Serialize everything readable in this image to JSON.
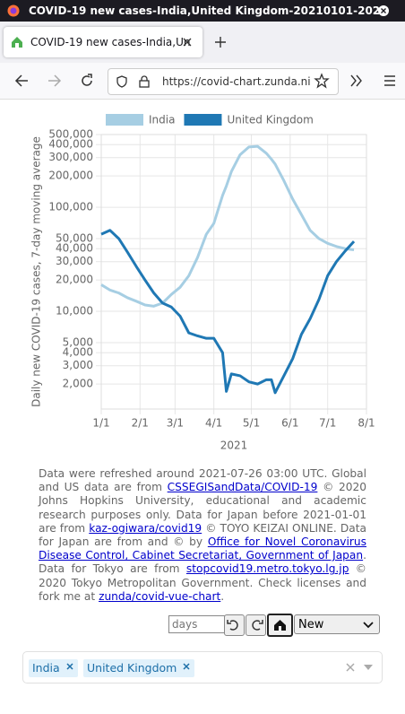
{
  "browser": {
    "window_title": "COVID-19 new cases-India,United Kingdom-20210101-202",
    "tab_title": "COVID-19 new cases-India,Un",
    "url": "https://covid-chart.zunda.ni"
  },
  "chart_data": {
    "type": "line",
    "y_label": "Daily new COVID-19 cases, 7-day moving average",
    "x_label": "2021",
    "legend": "top",
    "grid": true,
    "log_y": true,
    "x": [
      "2021-01-01",
      "2021-01-08",
      "2021-01-15",
      "2021-01-22",
      "2021-01-29",
      "2021-02-05",
      "2021-02-12",
      "2021-02-19",
      "2021-02-26",
      "2021-03-05",
      "2021-03-12",
      "2021-03-19",
      "2021-03-26",
      "2021-04-01",
      "2021-04-08",
      "2021-04-11",
      "2021-04-15",
      "2021-04-22",
      "2021-04-29",
      "2021-05-06",
      "2021-05-13",
      "2021-05-17",
      "2021-05-20",
      "2021-05-27",
      "2021-06-03",
      "2021-06-10",
      "2021-06-17",
      "2021-06-24",
      "2021-07-01",
      "2021-07-08",
      "2021-07-15",
      "2021-07-22"
    ],
    "series": [
      {
        "name": "India",
        "color": "#a6cee3",
        "values": [
          18000,
          16000,
          15000,
          13500,
          12500,
          11500,
          11200,
          12000,
          14500,
          17000,
          22000,
          33000,
          55000,
          70000,
          130000,
          160000,
          220000,
          320000,
          380000,
          385000,
          330000,
          290000,
          260000,
          180000,
          120000,
          85000,
          60000,
          50000,
          45000,
          42000,
          40000,
          39000
        ]
      },
      {
        "name": "United Kingdom",
        "color": "#1f78b4",
        "values": [
          55000,
          60000,
          50000,
          37000,
          27000,
          20000,
          15000,
          12000,
          11000,
          9000,
          6200,
          5800,
          5500,
          5500,
          4000,
          1700,
          2500,
          2400,
          2100,
          2000,
          2200,
          2200,
          1650,
          2400,
          3500,
          6000,
          8500,
          13000,
          22000,
          30000,
          38000,
          47000
        ]
      }
    ],
    "xlim": [
      "2021-01-01",
      "2021-08-01"
    ],
    "xticks": [
      {
        "value": "2021-01-01",
        "label": "1/1"
      },
      {
        "value": "2021-02-01",
        "label": "2/1"
      },
      {
        "value": "2021-03-01",
        "label": "3/1"
      },
      {
        "value": "2021-04-01",
        "label": "4/1"
      },
      {
        "value": "2021-05-01",
        "label": "5/1"
      },
      {
        "value": "2021-06-01",
        "label": "6/1"
      },
      {
        "value": "2021-07-01",
        "label": "7/1"
      },
      {
        "value": "2021-08-01",
        "label": "8/1"
      }
    ],
    "ylim": [
      1150,
      500000
    ],
    "yticks": [
      {
        "value": 2000,
        "label": "2,000"
      },
      {
        "value": 3000,
        "label": "3,000"
      },
      {
        "value": 4000,
        "label": "4,000"
      },
      {
        "value": 5000,
        "label": "5,000"
      },
      {
        "value": 10000,
        "label": "10,000"
      },
      {
        "value": 20000,
        "label": "20,000"
      },
      {
        "value": 30000,
        "label": "30,000"
      },
      {
        "value": 40000,
        "label": "40,000"
      },
      {
        "value": 50000,
        "label": "50,000"
      },
      {
        "value": 100000,
        "label": "100,000"
      },
      {
        "value": 200000,
        "label": "200,000"
      },
      {
        "value": 300000,
        "label": "300,000"
      },
      {
        "value": 400000,
        "label": "400,000"
      },
      {
        "value": 500000,
        "label": "500,000"
      }
    ]
  },
  "notes": [
    {
      "text": "Data were refreshed around 2021-07-26 03:00 UTC. Global and US data are from "
    },
    {
      "link": "CSSEGISandData/COVID-19"
    },
    {
      "text": " © 2020 Johns Hopkins University, educational and academic research purposes only. Data for Japan before 2021-01-01 are from "
    },
    {
      "link": "kaz-ogiwara/covid19"
    },
    {
      "text": " © TOYO KEIZAI ONLINE. Data for Japan are from and © by "
    },
    {
      "link": "Office for Novel Coronavirus Disease Control, Cabinet Secretariat, Government of Japan"
    },
    {
      "text": ". Data for Tokyo are from "
    },
    {
      "link": "stopcovid19.metro.tokyo.lg.jp"
    },
    {
      "text": " © 2020 Tokyo Metropolitan Government. Check licenses and fork me at "
    },
    {
      "link": "zunda/covid-vue-chart"
    },
    {
      "text": "."
    }
  ],
  "controls": {
    "days_placeholder": "days",
    "select": "New",
    "chips": [
      "India",
      "United Kingdom"
    ]
  }
}
